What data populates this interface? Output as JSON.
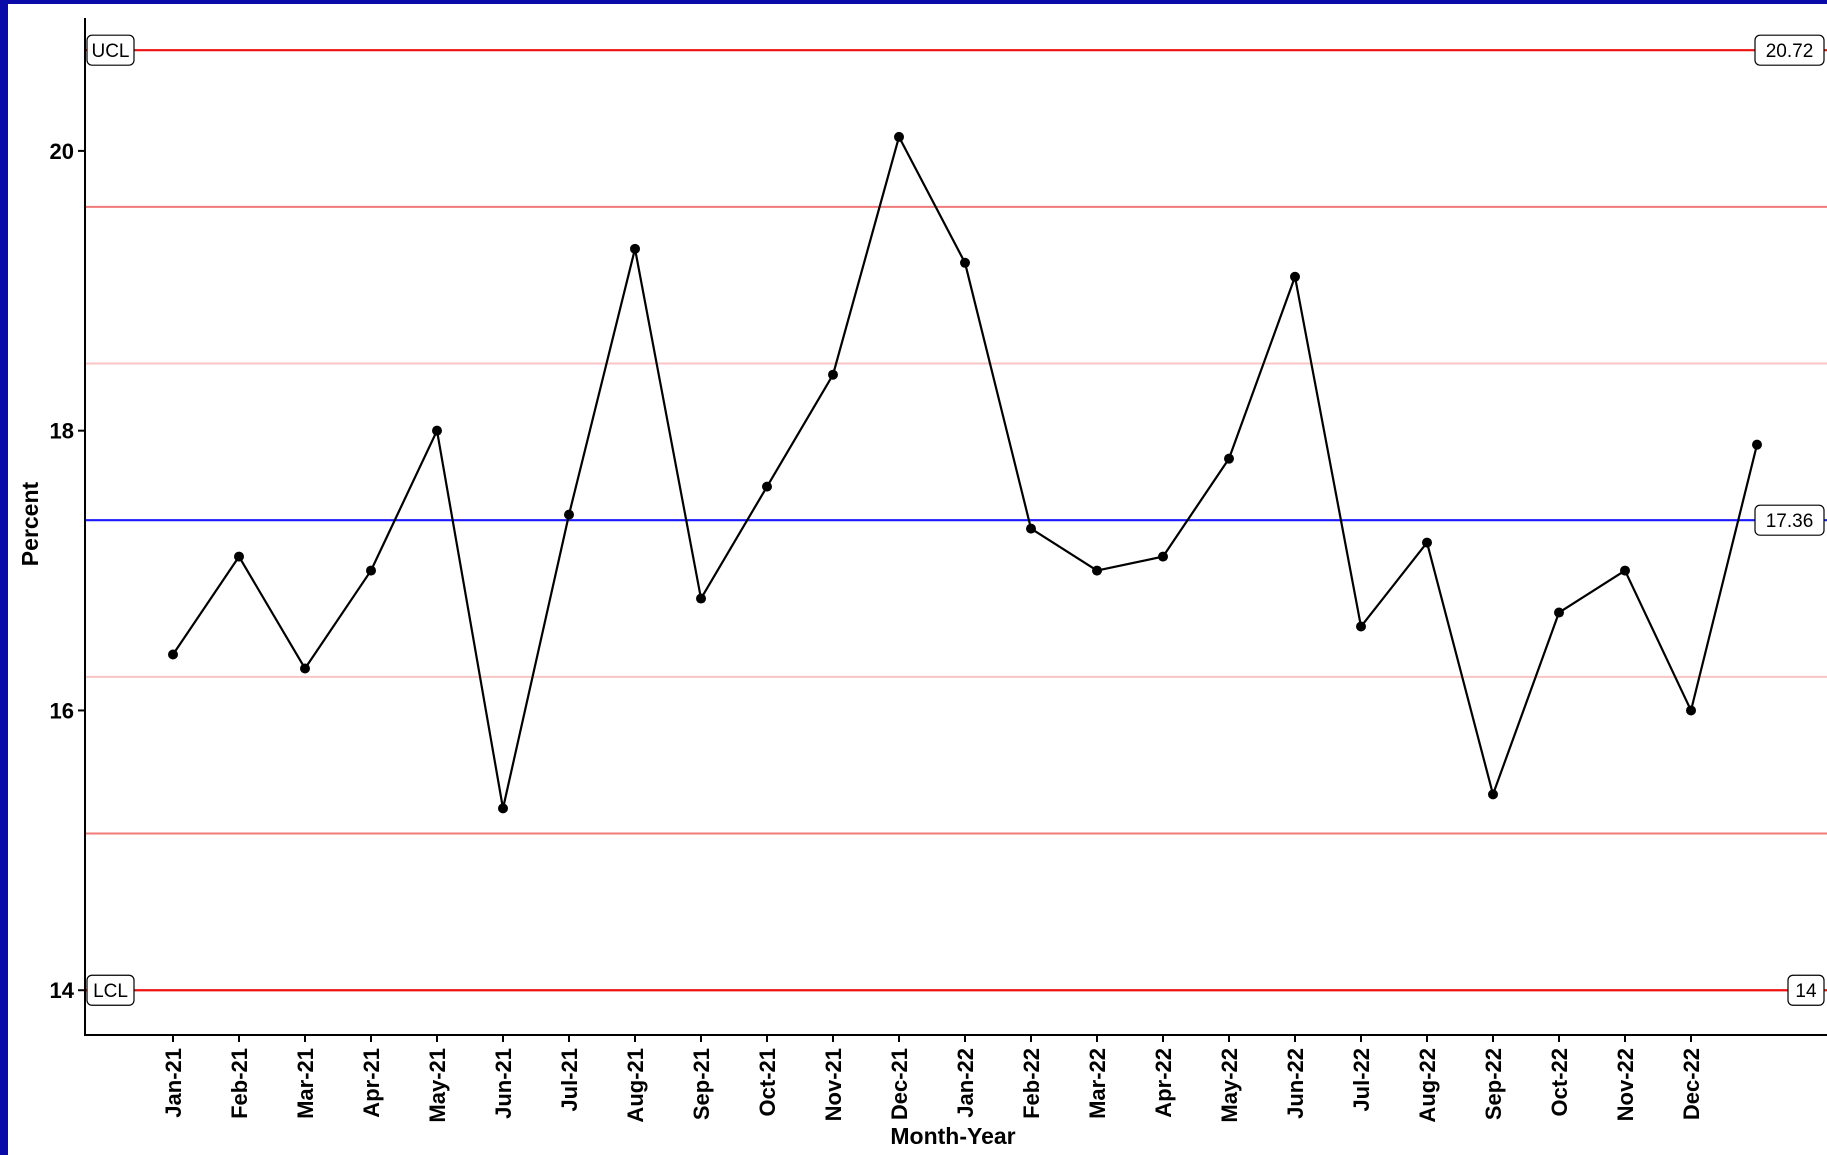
{
  "chart_data": {
    "type": "line",
    "xlabel": "Month-Year",
    "ylabel": "Percent",
    "ylim": [
      13.68,
      20.95
    ],
    "yticks": [
      14,
      16,
      18,
      20
    ],
    "grid": false,
    "categories": [
      "Jan-21",
      "Feb-21",
      "Mar-21",
      "Apr-21",
      "May-21",
      "Jun-21",
      "Jul-21",
      "Aug-21",
      "Sep-21",
      "Oct-21",
      "Nov-21",
      "Dec-21",
      "Jan-22",
      "Feb-22",
      "Mar-22",
      "Apr-22",
      "May-22",
      "Jun-22",
      "Jul-22",
      "Aug-22",
      "Sep-22",
      "Oct-22",
      "Nov-22",
      "Dec-22",
      ""
    ],
    "values": [
      16.4,
      17.1,
      16.3,
      17.0,
      18.0,
      15.3,
      17.4,
      19.3,
      16.8,
      17.6,
      18.4,
      20.1,
      19.2,
      17.3,
      17.0,
      17.1,
      17.8,
      19.1,
      16.6,
      17.2,
      15.4,
      16.7,
      17.0,
      16.0,
      17.9
    ],
    "control_lines": {
      "center": {
        "value": 17.36,
        "label": "17.36",
        "color": "#1a1aff"
      },
      "ucl": {
        "value": 20.72,
        "label": "UCL",
        "value_label": "20.72",
        "color": "#ee1111"
      },
      "lcl": {
        "value": 14,
        "label": "LCL",
        "value_label": "14",
        "color": "#ee1111"
      },
      "sigma_lines": [
        {
          "value": 19.6,
          "color": "#f07a7a"
        },
        {
          "value": 18.48,
          "color": "#f8c4c4"
        },
        {
          "value": 16.24,
          "color": "#f8c4c4"
        },
        {
          "value": 15.12,
          "color": "#f07a7a"
        }
      ]
    },
    "line_color": "#000000"
  }
}
